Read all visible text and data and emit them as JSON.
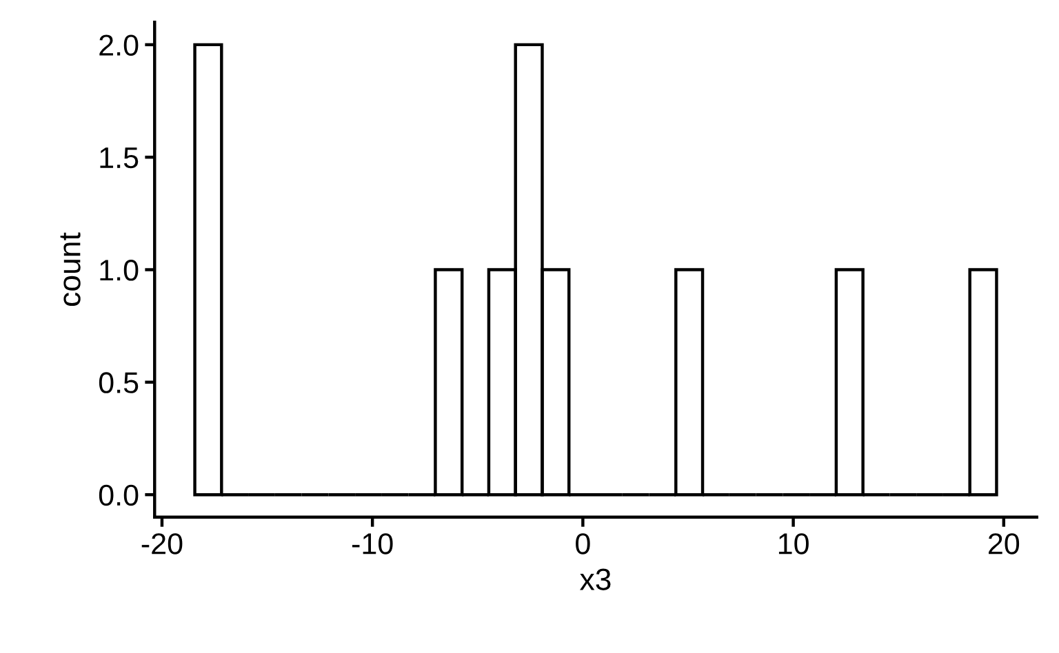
{
  "chart_data": {
    "type": "histogram",
    "xlabel": "x3",
    "ylabel": "count",
    "color": "#000000",
    "bins": [
      -18.44,
      -17.17,
      -15.9,
      -14.63,
      -13.36,
      -12.09,
      -10.82,
      -9.55,
      -8.28,
      -7.01,
      -5.74,
      -4.47,
      -3.2,
      -1.93,
      -0.66,
      0.61,
      1.88,
      3.15,
      4.42,
      5.69,
      6.96,
      8.23,
      9.5,
      10.77,
      12.04,
      13.31,
      14.58,
      15.85,
      17.12,
      18.39,
      19.66
    ],
    "values": [
      2,
      0,
      0,
      0,
      0,
      0,
      0,
      0,
      0,
      1,
      0,
      1,
      2,
      1,
      0,
      0,
      0,
      0,
      1,
      0,
      0,
      0,
      0,
      0,
      1,
      0,
      0,
      0,
      0,
      1
    ],
    "xlim": [
      -20.35,
      21.57
    ],
    "ylim": [
      -0.1,
      2.1
    ],
    "xticks": [
      -20,
      -10,
      0,
      10,
      20
    ],
    "yticks": [
      {
        "value": 0,
        "label": "0.0"
      },
      0.5,
      {
        "value": 1,
        "label": "1.0"
      },
      1.5,
      {
        "value": 2,
        "label": "2.0"
      }
    ]
  }
}
